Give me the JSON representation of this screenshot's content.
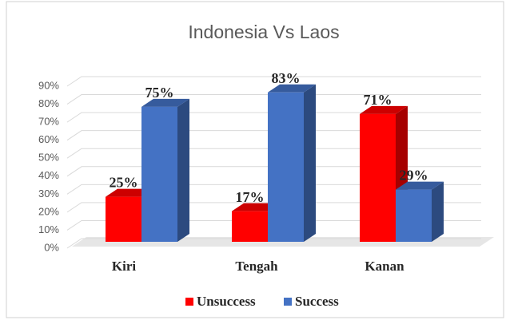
{
  "chart_data": {
    "type": "bar3d",
    "title": "Indonesia Vs Laos",
    "categories": [
      "Kiri",
      "Tengah",
      "Kanan"
    ],
    "series": [
      {
        "name": "Unsuccess",
        "color": "#ff0000",
        "values": [
          25,
          17,
          71
        ],
        "value_labels": [
          "25%",
          "17%",
          "71%"
        ]
      },
      {
        "name": "Success",
        "color": "#4472c4",
        "values": [
          75,
          83,
          29
        ],
        "value_labels": [
          "75%",
          "83%",
          "29%"
        ]
      }
    ],
    "ylim": [
      0,
      90
    ],
    "yticks": [
      {
        "value": 0,
        "label": "0%"
      },
      {
        "value": 10,
        "label": "10%"
      },
      {
        "value": 20,
        "label": "20%"
      },
      {
        "value": 30,
        "label": "30%"
      },
      {
        "value": 40,
        "label": "40%"
      },
      {
        "value": 50,
        "label": "50%"
      },
      {
        "value": 60,
        "label": "60%"
      },
      {
        "value": 70,
        "label": "70%"
      },
      {
        "value": 80,
        "label": "80%"
      },
      {
        "value": 90,
        "label": "90%"
      }
    ],
    "grid": true,
    "legend": "bottom"
  }
}
